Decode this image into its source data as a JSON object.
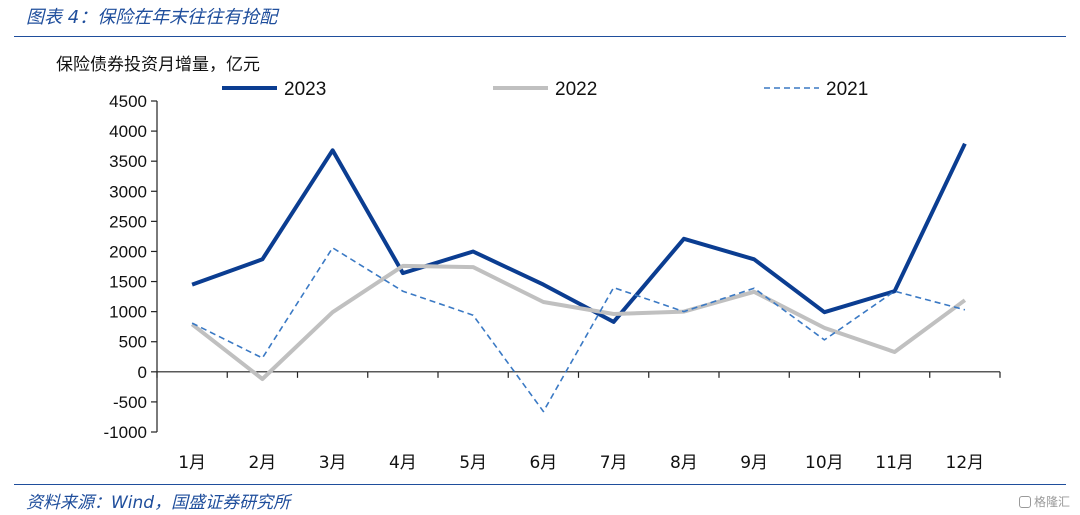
{
  "caption": "图表 4：保险在年末往往有抢配",
  "source": "资料来源：Wind，国盛证券研究所",
  "watermark": "格隆汇",
  "chart_data": {
    "type": "line",
    "title": "",
    "ylabel": "保险债券投资月增量，亿元",
    "xlabel": "",
    "categories": [
      "1月",
      "2月",
      "3月",
      "4月",
      "5月",
      "6月",
      "7月",
      "8月",
      "9月",
      "10月",
      "11月",
      "12月"
    ],
    "ylim": [
      -1000,
      4500
    ],
    "yticks": [
      4500,
      4000,
      3500,
      3000,
      2500,
      2000,
      1500,
      1000,
      500,
      0,
      -500,
      -1000
    ],
    "grid": false,
    "legend_position": "top",
    "series": [
      {
        "name": "2023",
        "color": "#0b3d91",
        "style": "solid",
        "width": 4,
        "values": [
          1450,
          1870,
          3680,
          1640,
          2000,
          1450,
          830,
          2210,
          1870,
          990,
          1340,
          3790
        ]
      },
      {
        "name": "2022",
        "color": "#c0c0c0",
        "style": "solid",
        "width": 4,
        "values": [
          790,
          -120,
          990,
          1760,
          1740,
          1160,
          960,
          1000,
          1330,
          730,
          330,
          1190
        ]
      },
      {
        "name": "2021",
        "color": "#3a79c4",
        "style": "dashed",
        "width": 1.6,
        "values": [
          810,
          230,
          2060,
          1340,
          940,
          -660,
          1400,
          1000,
          1390,
          530,
          1340,
          1030
        ]
      }
    ]
  }
}
